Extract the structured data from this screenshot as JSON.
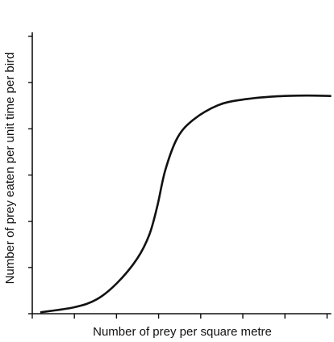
{
  "chart_data": {
    "type": "line",
    "x_label": "Number of prey per square metre",
    "y_label": "Number of prey eaten per unit time per bird",
    "x": [
      0.19,
      1.0,
      1.53,
      2.01,
      2.49,
      2.78,
      2.97,
      3.16,
      3.45,
      3.83,
      4.41,
      4.98,
      5.75,
      6.51,
      7.1
    ],
    "series": [
      {
        "color": "#111111",
        "values": [
          0.03,
          0.14,
          0.31,
          0.66,
          1.19,
          1.71,
          2.33,
          3.11,
          3.81,
          4.2,
          4.51,
          4.63,
          4.7,
          4.72,
          4.71
        ]
      }
    ],
    "xlim": [
      0,
      7.1
    ],
    "ylim": [
      0,
      6
    ],
    "xticks": [
      0,
      1,
      2,
      3,
      4,
      5,
      6,
      7
    ],
    "yticks": [
      0,
      1,
      2,
      3,
      4,
      5,
      6
    ]
  }
}
